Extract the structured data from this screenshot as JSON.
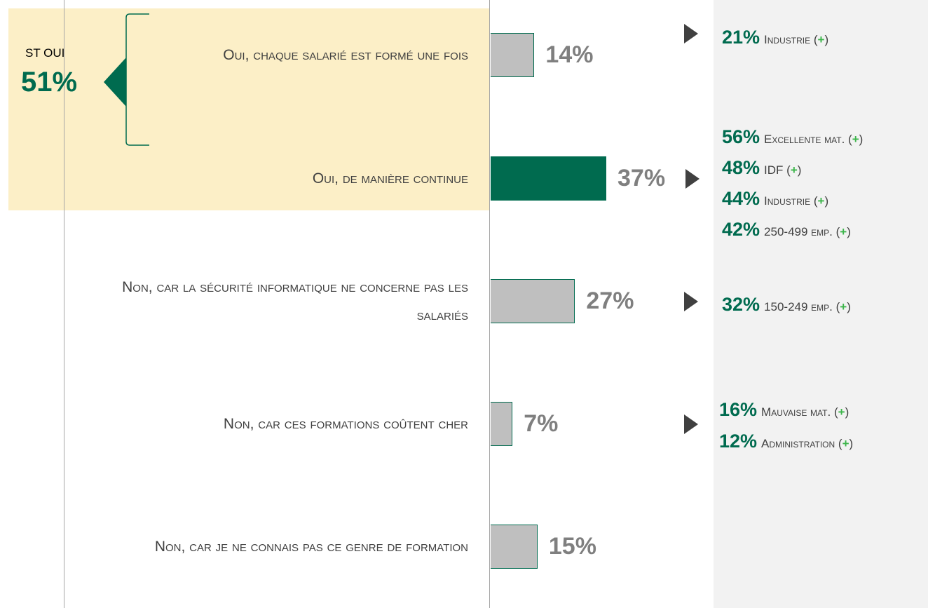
{
  "chart_data": {
    "type": "bar",
    "orientation": "horizontal",
    "categories": [
      "Oui, chaque salarié est formé une fois",
      "Oui, de manière continue",
      "Non, car la sécurité informatique ne concerne pas les salariés",
      "Non, car ces formations coûtent cher",
      "Non, car je ne connais pas ce genre de formation"
    ],
    "values": [
      14,
      37,
      27,
      7,
      15
    ],
    "value_labels": [
      "14%",
      "37%",
      "27%",
      "7%",
      "15%"
    ],
    "colors": [
      "#bfbfbf",
      "#006b4f",
      "#bfbfbf",
      "#bfbfbf",
      "#bfbfbf"
    ],
    "subtotal": {
      "label": "ST OUI",
      "value": 51,
      "value_label": "51%"
    },
    "trend_brackets": [
      "(",
      ")"
    ],
    "notes": [
      [
        {
          "value": 21,
          "value_label": "21%",
          "segment": "Industrie",
          "trend": "+"
        }
      ],
      [
        {
          "value": 56,
          "value_label": "56%",
          "segment": "Excellente mat.",
          "trend": "+"
        },
        {
          "value": 48,
          "value_label": "48%",
          "segment": "IDF",
          "trend": "+"
        },
        {
          "value": 44,
          "value_label": "44%",
          "segment": "Industrie",
          "trend": "+"
        },
        {
          "value": 42,
          "value_label": "42%",
          "segment": "250-499 emp.",
          "trend": "+"
        }
      ],
      [
        {
          "value": 32,
          "value_label": "32%",
          "segment": "150-249 emp.",
          "trend": "+"
        }
      ],
      [
        {
          "value": 16,
          "value_label": "16%",
          "segment": "Mauvaise mat.",
          "trend": "+"
        },
        {
          "value": 12,
          "value_label": "12%",
          "segment": "Administration",
          "trend": "+"
        }
      ],
      []
    ]
  }
}
